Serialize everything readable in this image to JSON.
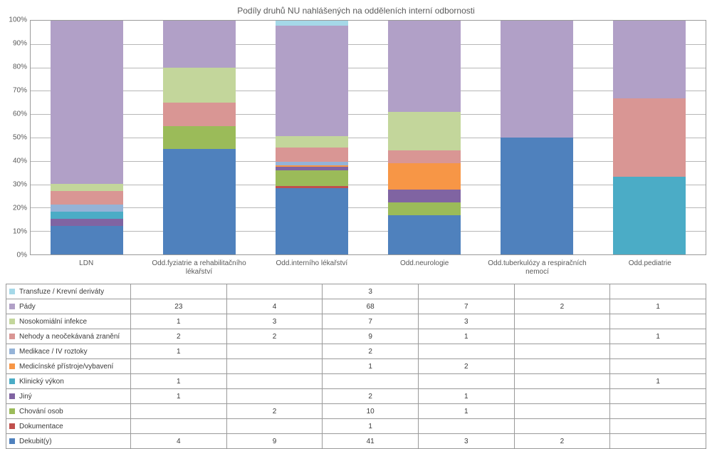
{
  "title": "Podíly druhů NU nahlášených na odděleních interní odbornosti",
  "categories_full": [
    "LDN",
    "Odd.fyziatrie a rehabilitačního lékařství",
    "Odd.interního lékařství",
    "Odd.neurologie",
    "Odd.tuberkulózy a respiračních nemocí",
    "Odd.pediatrie"
  ],
  "series": [
    {
      "name": "Transfuze / Krevní deriváty",
      "color": "#a5d8e8",
      "vals": [
        "",
        "",
        "3",
        "",
        "",
        ""
      ]
    },
    {
      "name": "Pády",
      "color": "#b1a0c7",
      "vals": [
        "23",
        "4",
        "68",
        "7",
        "2",
        "1"
      ]
    },
    {
      "name": "Nosokomiální infekce",
      "color": "#c3d69b",
      "vals": [
        "1",
        "3",
        "7",
        "3",
        "",
        ""
      ]
    },
    {
      "name": "Nehody a neočekávaná zranění",
      "color": "#d99694",
      "vals": [
        "2",
        "2",
        "9",
        "1",
        "",
        "1"
      ]
    },
    {
      "name": "Medikace / IV roztoky",
      "color": "#95b3d7",
      "vals": [
        "1",
        "",
        "2",
        "",
        "",
        ""
      ]
    },
    {
      "name": "Medicínské přístroje/vybavení",
      "color": "#f79646",
      "vals": [
        "",
        "",
        "1",
        "2",
        "",
        ""
      ]
    },
    {
      "name": "Klinický výkon",
      "color": "#4bacc6",
      "vals": [
        "1",
        "",
        "",
        "",
        "",
        "1"
      ]
    },
    {
      "name": "Jiný",
      "color": "#8064a2",
      "vals": [
        "1",
        "",
        "2",
        "1",
        "",
        ""
      ]
    },
    {
      "name": "Chování osob",
      "color": "#9bbb59",
      "vals": [
        "",
        "2",
        "10",
        "1",
        "",
        ""
      ]
    },
    {
      "name": "Dokumentace",
      "color": "#c0504d",
      "vals": [
        "",
        "",
        "1",
        "",
        "",
        ""
      ]
    },
    {
      "name": "Dekubit(y)",
      "color": "#4f81bd",
      "vals": [
        "4",
        "9",
        "41",
        "3",
        "2",
        ""
      ]
    }
  ],
  "y": {
    "min": 0,
    "max": 100,
    "step": 10,
    "suffix": "%"
  },
  "style": {
    "bg": "#ffffff",
    "grid": "#b7b7b7",
    "border": "#9a9a9a",
    "title_fs": 12,
    "axis_fs": 10,
    "table_fs": 10
  }
}
